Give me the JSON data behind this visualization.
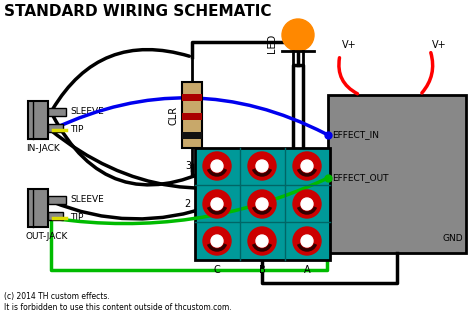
{
  "title": "STANDARD WIRING SCHEMATIC",
  "bg_color": "#ffffff",
  "footer1": "(c) 2014 TH custom effects.",
  "footer2": "It is forbidden to use this content outside of thcustom.com.",
  "colors": {
    "black": "#000000",
    "blue": "#0000ee",
    "green": "#00bb00",
    "red": "#ff0000",
    "orange_led": "#ff8800",
    "orange_led_body": "#ffaa00",
    "resistor_body": "#c8a86a",
    "resistor_red": "#aa0000",
    "resistor_black": "#111111",
    "gray_box": "#888888",
    "jack_gray": "#888888",
    "jack_dark": "#555555",
    "yellow": "#dddd00",
    "switch_red": "#cc0000",
    "switch_teal": "#009999",
    "switch_dark": "#006666",
    "white": "#ffffff"
  },
  "labels": {
    "sleeve_in": "SLEEVE",
    "tip_in": "TIP",
    "in_jack": "IN-JACK",
    "sleeve_out": "SLEEVE",
    "tip_out": "TIP",
    "out_jack": "OUT-JACK",
    "clr": "CLR",
    "led": "LED",
    "effect_in": "EFFECT_IN",
    "effect_out": "EFFECT_OUT",
    "gnd": "GND",
    "vplus1": "V+",
    "vplus2": "V+",
    "row3": "3",
    "row2": "2",
    "colC": "C",
    "colB": "B",
    "colA": "A"
  }
}
